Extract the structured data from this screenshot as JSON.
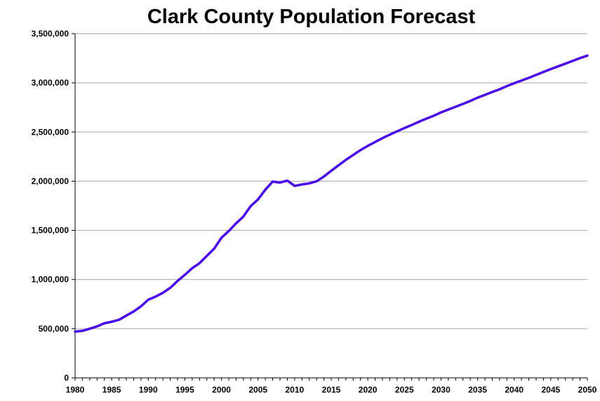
{
  "chart_data": {
    "type": "line",
    "title": "Clark County Population Forecast",
    "xlabel": "",
    "ylabel": "",
    "xlim": [
      1980,
      2050
    ],
    "ylim": [
      0,
      3500000
    ],
    "grid": true,
    "legend": "none",
    "x_ticks": [
      "1980",
      "1985",
      "1990",
      "1995",
      "2000",
      "2005",
      "2010",
      "2015",
      "2020",
      "2025",
      "2030",
      "2035",
      "2040",
      "2045",
      "2050"
    ],
    "y_ticks": [
      "0",
      "500,000",
      "1,000,000",
      "1,500,000",
      "2,000,000",
      "2,500,000",
      "3,000,000",
      "3,500,000"
    ],
    "series": [
      {
        "color": "#4b0ae8",
        "x": [
          1980,
          1981,
          1982,
          1983,
          1984,
          1985,
          1986,
          1987,
          1988,
          1989,
          1990,
          1991,
          1992,
          1993,
          1994,
          1995,
          1996,
          1997,
          1998,
          1999,
          2000,
          2001,
          2002,
          2003,
          2004,
          2005,
          2006,
          2007,
          2008,
          2009,
          2010,
          2011,
          2012,
          2013,
          2014,
          2015,
          2016,
          2017,
          2018,
          2019,
          2020,
          2021,
          2022,
          2023,
          2024,
          2025,
          2026,
          2027,
          2028,
          2029,
          2030,
          2031,
          2032,
          2033,
          2034,
          2035,
          2036,
          2037,
          2038,
          2039,
          2040,
          2041,
          2042,
          2043,
          2044,
          2045,
          2046,
          2047,
          2048,
          2049,
          2050
        ],
        "y": [
          470000,
          478000,
          500000,
          523000,
          555000,
          570000,
          590000,
          633000,
          675000,
          728000,
          795000,
          826000,
          865000,
          915000,
          985000,
          1048000,
          1115000,
          1166000,
          1240000,
          1313000,
          1425000,
          1493000,
          1571000,
          1641000,
          1747000,
          1815000,
          1913000,
          1996000,
          1985000,
          2006000,
          1952000,
          1967000,
          1978000,
          1998000,
          2047000,
          2106000,
          2161000,
          2217000,
          2266000,
          2316000,
          2359000,
          2399000,
          2437000,
          2473000,
          2507000,
          2540000,
          2571000,
          2605000,
          2636000,
          2665000,
          2699000,
          2728000,
          2757000,
          2786000,
          2816000,
          2849000,
          2877000,
          2906000,
          2934000,
          2967000,
          2996000,
          3023000,
          3051000,
          3080000,
          3111000,
          3140000,
          3167000,
          3195000,
          3223000,
          3251000,
          3277000
        ]
      }
    ]
  }
}
